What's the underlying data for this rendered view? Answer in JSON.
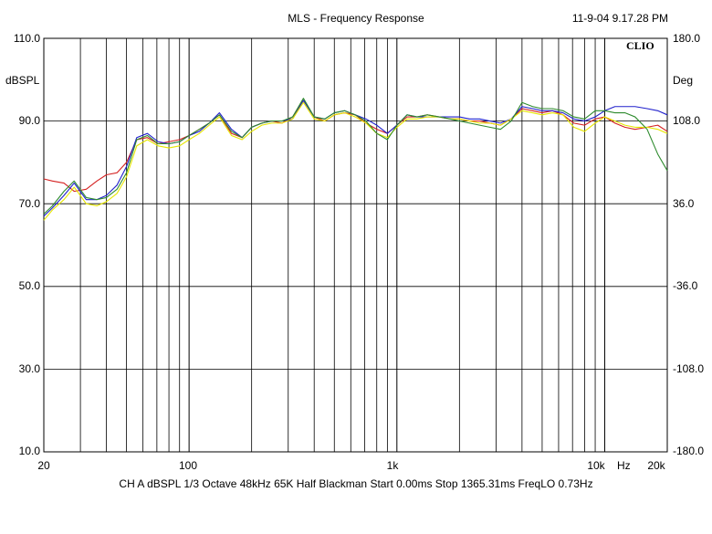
{
  "header": {
    "title": "MLS - Frequency Response",
    "timestamp": "11-9-04 9.17.28 PM",
    "brand": "CLIO"
  },
  "footer": {
    "settings": "CH A   dBSPL   1/3 Octave   48kHz   65K   Half Blackman   Start 0.00ms   Stop 1365.31ms   FreqLO 0.73Hz"
  },
  "chart_data": {
    "type": "line",
    "title": "MLS - Frequency Response",
    "xlabel": "Hz",
    "ylabel": "dBSPL",
    "ylabel_right": "Deg",
    "x_scale": "log",
    "xlim": [
      20,
      20000
    ],
    "ylim": [
      10,
      110
    ],
    "ylim_right": [
      -180,
      180
    ],
    "grid": true,
    "legend": "none",
    "x_tick_labels": [
      {
        "value": 20,
        "label": "20"
      },
      {
        "value": 100,
        "label": "100"
      },
      {
        "value": 1000,
        "label": "1k"
      },
      {
        "value": 10000,
        "label": "10k"
      },
      {
        "value": 20000,
        "label": "20k"
      }
    ],
    "y_tick_labels": [
      "110.0",
      "90.0",
      "70.0",
      "50.0",
      "30.0",
      "10.0"
    ],
    "y_tick_values": [
      110,
      90,
      70,
      50,
      30,
      10
    ],
    "y_right_tick_labels": [
      "180.0",
      "108.0",
      "36.0",
      "-36.0",
      "-108.0",
      "-180.0"
    ],
    "x": [
      20,
      22,
      25,
      28,
      32,
      36,
      40,
      45,
      50,
      56,
      63,
      71,
      80,
      90,
      100,
      112,
      125,
      140,
      160,
      180,
      200,
      224,
      250,
      280,
      315,
      355,
      400,
      450,
      500,
      560,
      630,
      710,
      800,
      900,
      1000,
      1120,
      1250,
      1400,
      1600,
      1800,
      2000,
      2240,
      2500,
      2800,
      3150,
      3550,
      4000,
      4500,
      5000,
      5600,
      6300,
      7100,
      8000,
      9000,
      10000,
      11200,
      12500,
      14000,
      16000,
      18000,
      20000
    ],
    "series": [
      {
        "color": "#d42020",
        "values": [
          76,
          75.5,
          75,
          73,
          73.5,
          75.5,
          77,
          77.5,
          80,
          85.5,
          86,
          84.5,
          85,
          85.5,
          86.5,
          88,
          89.5,
          91.5,
          87,
          86,
          88.5,
          89.5,
          90,
          89.5,
          91,
          95,
          91,
          90,
          91.5,
          92,
          91.5,
          89.5,
          88,
          87,
          89,
          91,
          91,
          91.5,
          91,
          90.5,
          90.5,
          90,
          90,
          89.5,
          89,
          90.5,
          93,
          92.5,
          92,
          92.5,
          91.5,
          89.5,
          89,
          90.5,
          91,
          89.5,
          88.5,
          88,
          88.5,
          89,
          87.5
        ]
      },
      {
        "color": "#2020cc",
        "values": [
          67,
          69,
          72,
          75,
          71,
          71,
          72,
          74.5,
          79,
          86,
          87,
          85,
          84.5,
          85,
          86.5,
          87.5,
          89.5,
          92,
          88,
          86,
          88.5,
          89.5,
          90,
          90,
          90.5,
          95,
          91,
          90.5,
          92,
          92.5,
          91.5,
          90.5,
          89,
          87,
          89,
          91.5,
          91,
          91,
          91,
          91,
          91,
          90.5,
          90.5,
          90,
          89.5,
          90.5,
          93.5,
          93,
          92.5,
          92.5,
          92,
          90.5,
          90,
          91,
          92.5,
          93.5,
          93.5,
          93.5,
          93,
          92.5,
          91.5
        ]
      },
      {
        "color": "#e6e600",
        "values": [
          66,
          68.5,
          71,
          74,
          70,
          69.5,
          70.5,
          72.5,
          76.5,
          84,
          85.5,
          84,
          83.5,
          84,
          85.5,
          87,
          89,
          91,
          86.5,
          85.5,
          87.5,
          89,
          89.5,
          89.5,
          90.5,
          94.5,
          90.5,
          90,
          91.5,
          92,
          91,
          89.5,
          87,
          86,
          88.5,
          90.5,
          90.5,
          91,
          91,
          90.5,
          90.5,
          90,
          89.5,
          89.5,
          89,
          90.5,
          92.5,
          92,
          91.5,
          92,
          91.5,
          88.5,
          87.5,
          89.5,
          91,
          90,
          89,
          88.5,
          88.5,
          88,
          87
        ]
      },
      {
        "color": "#2e8b2e",
        "values": [
          67.5,
          69.5,
          73,
          75.5,
          71.5,
          71,
          71.5,
          73.5,
          77.5,
          85.5,
          86.5,
          84.5,
          84.5,
          85,
          86.5,
          88,
          89.5,
          91.5,
          87.5,
          86,
          88.5,
          89.5,
          90,
          90,
          91,
          95.5,
          91,
          90.5,
          92,
          92.5,
          91.5,
          90,
          87,
          85.5,
          89,
          91.5,
          91,
          91.5,
          91,
          90.5,
          90,
          89.5,
          89,
          88.5,
          88,
          90,
          94.5,
          93.5,
          93,
          93,
          92.5,
          91,
          90.5,
          92.5,
          92.5,
          92,
          92,
          91,
          88,
          82,
          78
        ]
      }
    ]
  }
}
